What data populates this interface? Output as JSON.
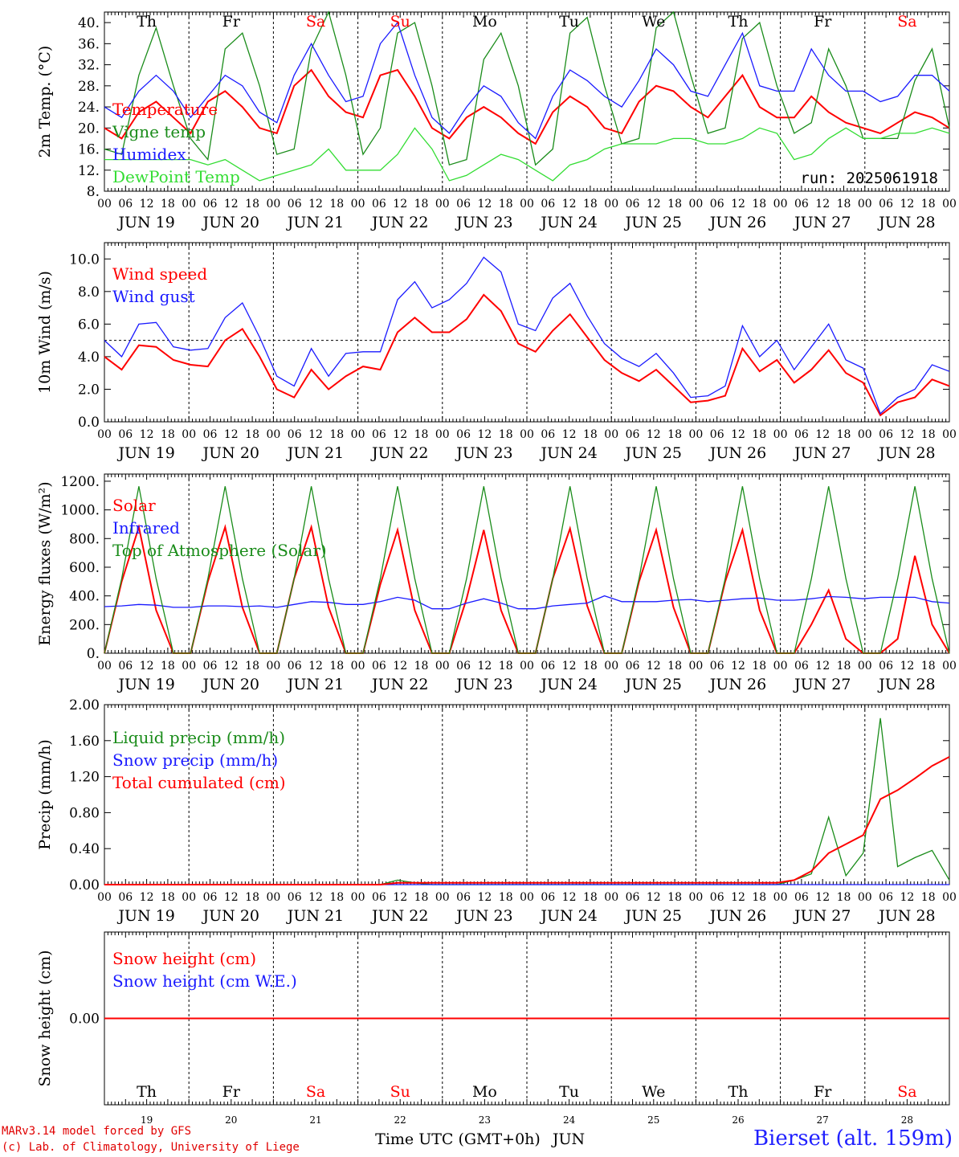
{
  "run": "run: 2025061918",
  "station": "Bierset (alt. 159m)",
  "credits": [
    "MARv3.14 model forced by GFS",
    "(c) Lab. of Climatology, University of Liege"
  ],
  "x_title": "Time UTC (GMT+0h)",
  "month_label": "JUN",
  "day_names": [
    "Th",
    "Fr",
    "Sa",
    "Su",
    "Mo",
    "Tu",
    "We",
    "Th",
    "Fr",
    "Sa"
  ],
  "day_numbers": [
    "19",
    "20",
    "21",
    "22",
    "23",
    "24",
    "25",
    "26",
    "27",
    "28"
  ],
  "date_labels": [
    "JUN 19",
    "JUN 20",
    "JUN 21",
    "JUN 22",
    "JUN 23",
    "JUN 24",
    "JUN 25",
    "JUN 26",
    "JUN 27",
    "JUN 28"
  ],
  "hour_ticks": [
    "00",
    "06",
    "12",
    "18"
  ],
  "colors": {
    "red": "#ff0000",
    "green": "#1a8c1a",
    "blue": "#1a1aff",
    "lightgreen": "#33dd33",
    "weekend": "#ff0000"
  },
  "chart_data": [
    {
      "type": "line",
      "id": "temp",
      "ylabel": "2m Temp. (°C)",
      "ylim": [
        8,
        42
      ],
      "yticks": [
        "8.",
        "12.",
        "16.",
        "20.",
        "24.",
        "28.",
        "32.",
        "36.",
        "40."
      ],
      "x_start_day": 19,
      "hours_per_point": 6,
      "series": [
        {
          "name": "Temperature",
          "color": "red",
          "values": [
            20,
            18,
            23,
            25,
            22,
            19,
            25,
            27,
            24,
            20,
            19,
            28,
            31,
            26,
            23,
            22,
            30,
            31,
            26,
            20,
            18,
            22,
            24,
            22,
            19,
            17,
            23,
            26,
            24,
            20,
            19,
            25,
            28,
            27,
            24,
            22,
            26,
            30,
            24,
            22,
            22,
            26,
            23,
            21,
            20,
            19,
            21,
            23,
            22,
            20
          ]
        },
        {
          "name": "Vigne temp",
          "color": "green",
          "values": [
            16,
            15,
            30,
            39,
            28,
            18,
            14,
            35,
            38,
            28,
            15,
            16,
            35,
            42,
            30,
            15,
            20,
            38,
            40,
            28,
            13,
            14,
            33,
            38,
            28,
            13,
            16,
            38,
            41,
            28,
            17,
            18,
            39,
            42,
            30,
            19,
            20,
            37,
            40,
            28,
            19,
            21,
            35,
            28,
            18,
            18,
            18,
            29,
            35,
            20
          ]
        },
        {
          "name": "Humidex",
          "color": "blue",
          "values": [
            24,
            22,
            27,
            30,
            27,
            22,
            26,
            30,
            28,
            23,
            21,
            30,
            36,
            30,
            25,
            26,
            36,
            40,
            30,
            22,
            19,
            24,
            28,
            26,
            21,
            18,
            26,
            31,
            29,
            26,
            24,
            29,
            35,
            32,
            27,
            26,
            32,
            38,
            28,
            27,
            27,
            35,
            30,
            27,
            27,
            25,
            26,
            30,
            30,
            27
          ]
        },
        {
          "name": "DewPoint Temp",
          "color": "lightgreen",
          "values": [
            14,
            14,
            14,
            14,
            14,
            14,
            13,
            14,
            12,
            10,
            11,
            12,
            13,
            16,
            12,
            12,
            12,
            15,
            20,
            16,
            10,
            11,
            13,
            15,
            14,
            12,
            10,
            13,
            14,
            16,
            17,
            17,
            17,
            18,
            18,
            17,
            17,
            18,
            20,
            19,
            14,
            15,
            18,
            20,
            18,
            18,
            19,
            19,
            20,
            19
          ]
        }
      ]
    },
    {
      "type": "line",
      "id": "wind",
      "ylabel": "10m Wind (m/s)",
      "ylim": [
        0,
        11
      ],
      "yticks": [
        "0.0",
        "2.0",
        "4.0",
        "6.0",
        "8.0",
        "10.0"
      ],
      "ref_line": 5,
      "x_start_day": 19,
      "hours_per_point": 6,
      "series": [
        {
          "name": "Wind speed",
          "color": "red",
          "values": [
            4.0,
            3.2,
            4.7,
            4.6,
            3.8,
            3.5,
            3.4,
            5.0,
            5.7,
            4.0,
            2.0,
            1.5,
            3.2,
            2.0,
            2.8,
            3.4,
            3.2,
            5.5,
            6.4,
            5.5,
            5.5,
            6.3,
            7.8,
            6.8,
            4.8,
            4.3,
            5.6,
            6.6,
            5.2,
            3.8,
            3.0,
            2.5,
            3.2,
            2.2,
            1.2,
            1.3,
            1.6,
            4.5,
            3.1,
            3.8,
            2.4,
            3.2,
            4.4,
            3.0,
            2.4,
            0.4,
            1.2,
            1.5,
            2.6,
            2.2
          ]
        },
        {
          "name": "Wind gust",
          "color": "blue",
          "values": [
            5.0,
            4.0,
            6.0,
            6.1,
            4.6,
            4.4,
            4.5,
            6.4,
            7.3,
            5.2,
            2.8,
            2.2,
            4.5,
            2.8,
            4.2,
            4.3,
            4.3,
            7.5,
            8.6,
            7.0,
            7.5,
            8.5,
            10.1,
            9.2,
            6.0,
            5.6,
            7.6,
            8.5,
            6.5,
            4.8,
            3.9,
            3.4,
            4.2,
            3.0,
            1.5,
            1.6,
            2.2,
            5.9,
            4.0,
            5.0,
            3.2,
            4.6,
            6.0,
            3.8,
            3.3,
            0.5,
            1.5,
            2.0,
            3.5,
            3.1
          ]
        }
      ]
    },
    {
      "type": "line",
      "id": "energy",
      "ylabel": "Energy fluxes (W/m²)",
      "ylim": [
        0,
        1250
      ],
      "yticks": [
        "0.",
        "200.",
        "400.",
        "600.",
        "800.",
        "1000.",
        "1200."
      ],
      "x_start_day": 19,
      "hours_per_point": 6,
      "series": [
        {
          "name": "Solar",
          "color": "red",
          "values": [
            0,
            500,
            880,
            300,
            0,
            0,
            500,
            880,
            320,
            0,
            0,
            520,
            880,
            320,
            0,
            0,
            480,
            860,
            300,
            0,
            0,
            380,
            860,
            300,
            0,
            0,
            520,
            870,
            330,
            0,
            0,
            500,
            860,
            320,
            0,
            0,
            500,
            860,
            300,
            0,
            0,
            200,
            440,
            100,
            0,
            0,
            100,
            680,
            200,
            0
          ]
        },
        {
          "name": "Infrared",
          "color": "blue",
          "values": [
            325,
            330,
            340,
            335,
            320,
            320,
            330,
            330,
            325,
            330,
            320,
            340,
            360,
            355,
            340,
            340,
            360,
            390,
            370,
            310,
            310,
            350,
            380,
            350,
            310,
            310,
            330,
            340,
            350,
            400,
            360,
            360,
            360,
            370,
            375,
            360,
            370,
            380,
            385,
            370,
            370,
            380,
            395,
            390,
            380,
            390,
            390,
            390,
            360,
            350
          ]
        },
        {
          "name": "Top of Atmosphere (Solar)",
          "color": "green",
          "values": [
            0,
            520,
            1165,
            520,
            0,
            0,
            520,
            1165,
            520,
            0,
            0,
            520,
            1165,
            520,
            0,
            0,
            520,
            1165,
            520,
            0,
            0,
            520,
            1165,
            520,
            0,
            0,
            520,
            1165,
            520,
            0,
            0,
            520,
            1165,
            520,
            0,
            0,
            520,
            1165,
            520,
            0,
            0,
            520,
            1165,
            520,
            0,
            0,
            520,
            1165,
            520,
            0
          ]
        }
      ]
    },
    {
      "type": "line",
      "id": "precip",
      "ylabel": "Precip (mm/h)",
      "ylim": [
        0,
        2.0
      ],
      "yticks": [
        "0.00",
        "0.40",
        "0.80",
        "1.20",
        "1.60",
        "2.00"
      ],
      "x_start_day": 19,
      "hours_per_point": 6,
      "series": [
        {
          "name": "Liquid precip (mm/h)",
          "color": "green",
          "values": [
            0,
            0,
            0,
            0,
            0,
            0,
            0,
            0,
            0,
            0,
            0,
            0,
            0,
            0,
            0,
            0,
            0,
            0.05,
            0.02,
            0,
            0,
            0,
            0,
            0,
            0,
            0,
            0,
            0,
            0,
            0,
            0,
            0,
            0,
            0,
            0,
            0,
            0,
            0,
            0,
            0,
            0.05,
            0.12,
            0.75,
            0.1,
            0.35,
            1.85,
            0.2,
            0.3,
            0.38,
            0.05
          ]
        },
        {
          "name": "Snow precip (mm/h)",
          "color": "blue",
          "values": [
            0,
            0,
            0,
            0,
            0,
            0,
            0,
            0,
            0,
            0,
            0,
            0,
            0,
            0,
            0,
            0,
            0,
            0,
            0,
            0,
            0,
            0,
            0,
            0,
            0,
            0,
            0,
            0,
            0,
            0,
            0,
            0,
            0,
            0,
            0,
            0,
            0,
            0,
            0,
            0,
            0,
            0,
            0,
            0,
            0,
            0,
            0,
            0,
            0,
            0
          ]
        },
        {
          "name": "Total cumulated (cm)",
          "color": "red",
          "values": [
            0,
            0,
            0,
            0,
            0,
            0,
            0,
            0,
            0,
            0,
            0,
            0,
            0,
            0,
            0,
            0,
            0,
            0.02,
            0.02,
            0.02,
            0.02,
            0.02,
            0.02,
            0.02,
            0.02,
            0.02,
            0.02,
            0.02,
            0.02,
            0.02,
            0.02,
            0.02,
            0.02,
            0.02,
            0.02,
            0.02,
            0.02,
            0.02,
            0.02,
            0.02,
            0.05,
            0.15,
            0.35,
            0.45,
            0.55,
            0.95,
            1.05,
            1.18,
            1.32,
            1.42
          ]
        }
      ]
    },
    {
      "type": "line",
      "id": "snow",
      "ylabel": "Snow height (cm)",
      "ylim": [
        -1,
        1
      ],
      "yticks": [
        "0.00"
      ],
      "x_start_day": 19,
      "hours_per_point": 6,
      "series": [
        {
          "name": "Snow height (cm)",
          "color": "red",
          "values": [
            0,
            0,
            0,
            0,
            0,
            0,
            0,
            0,
            0,
            0,
            0,
            0,
            0,
            0,
            0,
            0,
            0,
            0,
            0,
            0,
            0,
            0,
            0,
            0,
            0,
            0,
            0,
            0,
            0,
            0,
            0,
            0,
            0,
            0,
            0,
            0,
            0,
            0,
            0,
            0,
            0,
            0,
            0,
            0,
            0,
            0,
            0,
            0,
            0,
            0
          ]
        },
        {
          "name": "Snow height (cm W.E.)",
          "color": "blue",
          "values": []
        }
      ]
    }
  ]
}
